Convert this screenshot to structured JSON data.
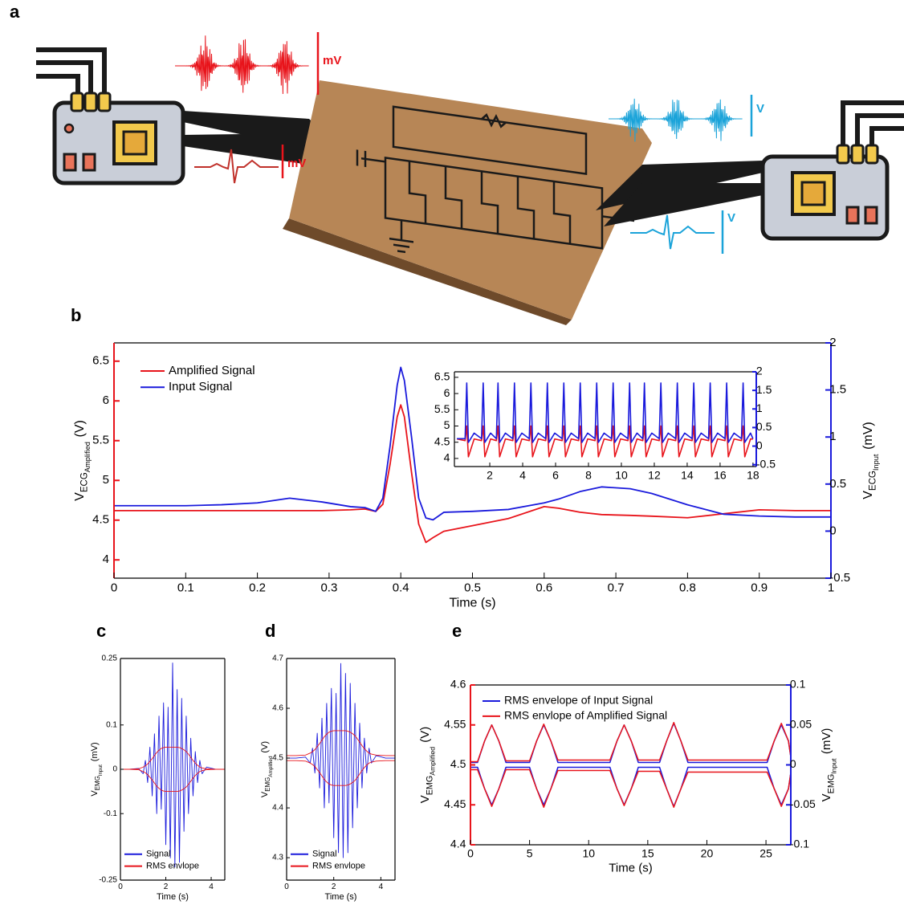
{
  "illustration": {
    "panel_label": "a",
    "scale_labels": [
      "mV",
      "mV",
      "V",
      "V"
    ]
  },
  "chart_data": [
    {
      "type": "line",
      "panel_label": "b",
      "x": [
        0,
        0.1,
        0.15,
        0.2,
        0.245,
        0.29,
        0.33,
        0.35,
        0.365,
        0.375,
        0.385,
        0.395,
        0.4,
        0.405,
        0.415,
        0.425,
        0.435,
        0.445,
        0.46,
        0.5,
        0.55,
        0.6,
        0.62,
        0.65,
        0.68,
        0.72,
        0.75,
        0.8,
        0.85,
        0.9,
        0.95,
        1
      ],
      "xlim": [
        0,
        1
      ],
      "xticks": [
        0,
        0.1,
        0.2,
        0.3,
        0.4,
        0.5,
        0.6,
        0.7,
        0.8,
        0.9,
        1
      ],
      "xlabel": "Time (s)",
      "ylim": [
        3.77,
        6.73
      ],
      "yticks": [
        4,
        4.5,
        5,
        5.5,
        6,
        6.5
      ],
      "y2lim": [
        -0.5,
        2
      ],
      "y2ticks": [
        -0.5,
        0,
        0.5,
        1,
        1.5,
        2
      ],
      "ylabel": {
        "main": "V",
        "sub": "ECG",
        "subsub": "Amplified",
        "unit": "(V)"
      },
      "y2label": {
        "main": "V",
        "sub": "ECG",
        "subsub": "Input",
        "unit": "(mV)"
      },
      "axis_colors": {
        "y": "#e8141b",
        "y2": "#1a1adc"
      },
      "legend": "upper left",
      "series": [
        {
          "name": "Amplified Signal",
          "color": "#e8141b",
          "values": [
            4.62,
            4.62,
            4.62,
            4.62,
            4.62,
            4.62,
            4.63,
            4.64,
            4.61,
            4.7,
            5.2,
            5.8,
            5.95,
            5.8,
            5.1,
            4.45,
            4.22,
            4.28,
            4.36,
            4.43,
            4.52,
            4.67,
            4.65,
            4.6,
            4.57,
            4.56,
            4.55,
            4.53,
            4.58,
            4.63,
            4.62,
            4.62
          ]
        },
        {
          "name": "Input Signal",
          "color": "#1a1adc",
          "axis": "y2",
          "values": [
            0.27,
            0.27,
            0.28,
            0.3,
            0.35,
            0.31,
            0.26,
            0.25,
            0.21,
            0.35,
            0.9,
            1.55,
            1.74,
            1.6,
            1.0,
            0.35,
            0.14,
            0.12,
            0.2,
            0.21,
            0.23,
            0.3,
            0.34,
            0.42,
            0.47,
            0.45,
            0.4,
            0.28,
            0.18,
            0.16,
            0.15,
            0.15
          ]
        }
      ]
    },
    {
      "type": "line",
      "x": [
        0,
        0.5,
        0.6,
        0.7,
        1.05,
        1.5,
        1.6,
        1.7,
        2.05,
        2.4,
        2.5,
        2.6,
        2.95,
        3.4,
        3.5,
        3.6,
        3.95,
        4.4,
        4.5,
        4.6,
        4.95,
        5.4,
        5.5,
        5.6,
        5.95,
        6.4,
        6.5,
        6.6,
        6.95,
        7.4,
        7.5,
        7.6,
        7.95,
        8.4,
        8.5,
        8.6,
        8.95,
        9.4,
        9.5,
        9.6,
        9.95,
        10.4,
        10.5,
        10.6,
        10.95,
        11.3,
        11.4,
        11.5,
        11.85,
        12.3,
        12.4,
        12.5,
        12.85,
        13.3,
        13.4,
        13.5,
        13.85,
        14.3,
        14.4,
        14.5,
        14.85,
        15.3,
        15.4,
        15.5,
        15.85,
        16.3,
        16.4,
        16.5,
        16.85,
        17.3,
        17.4,
        17.5,
        17.85,
        18
      ],
      "xlim": [
        -0.15,
        18.2
      ],
      "xticks": [
        2,
        4,
        6,
        8,
        10,
        12,
        14,
        16,
        18
      ],
      "ylim": [
        3.75,
        6.67
      ],
      "yticks": [
        4,
        4.5,
        5,
        5.5,
        6,
        6.5
      ],
      "y2lim": [
        -0.55,
        2.0
      ],
      "y2ticks": [
        -0.5,
        0,
        0.5,
        1,
        1.5,
        2
      ],
      "axis_colors": {
        "y2": "#1a1adc"
      },
      "series": [
        {
          "color": "#e8141b",
          "values": [
            4.6,
            4.55,
            5.0,
            4.05,
            4.6,
            4.55,
            5.0,
            4.05,
            4.6,
            4.55,
            5.0,
            4.05,
            4.6,
            4.55,
            5.0,
            4.05,
            4.6,
            4.55,
            5.0,
            4.05,
            4.6,
            4.55,
            5.0,
            4.05,
            4.6,
            4.55,
            5.0,
            4.05,
            4.6,
            4.55,
            5.0,
            4.05,
            4.6,
            4.55,
            5.0,
            4.05,
            4.6,
            4.55,
            5.0,
            4.05,
            4.6,
            4.55,
            5.0,
            4.05,
            4.6,
            4.55,
            5.0,
            4.05,
            4.6,
            4.55,
            5.0,
            4.05,
            4.6,
            4.55,
            5.0,
            4.05,
            4.6,
            4.55,
            5.0,
            4.05,
            4.6,
            4.55,
            5.0,
            4.05,
            4.6,
            4.55,
            5.0,
            4.05,
            4.6,
            4.55,
            5.0,
            4.05,
            4.6,
            4.6
          ]
        },
        {
          "color": "#1a1adc",
          "axis": "y2",
          "values": [
            0.2,
            0.2,
            1.7,
            0.1,
            0.35,
            0.2,
            1.7,
            0.1,
            0.35,
            0.2,
            1.7,
            0.1,
            0.35,
            0.2,
            1.7,
            0.1,
            0.35,
            0.2,
            1.7,
            0.1,
            0.35,
            0.2,
            1.7,
            0.1,
            0.35,
            0.2,
            1.7,
            0.1,
            0.35,
            0.2,
            1.7,
            0.1,
            0.35,
            0.2,
            1.7,
            0.1,
            0.35,
            0.2,
            1.7,
            0.1,
            0.35,
            0.2,
            1.7,
            0.1,
            0.35,
            0.2,
            1.7,
            0.1,
            0.35,
            0.2,
            1.7,
            0.1,
            0.35,
            0.2,
            1.7,
            0.1,
            0.35,
            0.2,
            1.7,
            0.1,
            0.35,
            0.2,
            1.7,
            0.1,
            0.35,
            0.2,
            1.7,
            0.1,
            0.35,
            0.2,
            1.7,
            0.1,
            0.35,
            0.2
          ]
        }
      ]
    },
    {
      "type": "line",
      "panel_label": "c",
      "x": [
        0,
        0.4,
        0.8,
        1.0,
        1.1,
        1.2,
        1.3,
        1.4,
        1.5,
        1.6,
        1.7,
        1.8,
        1.9,
        2.0,
        2.1,
        2.2,
        2.3,
        2.4,
        2.5,
        2.6,
        2.7,
        2.8,
        2.9,
        3.0,
        3.1,
        3.2,
        3.3,
        3.4,
        3.5,
        3.6,
        3.8,
        4.2,
        4.6
      ],
      "xlim": [
        0,
        4.6
      ],
      "xticks": [
        0,
        2,
        4
      ],
      "xlabel": "Time (s)",
      "ylim": [
        -0.25,
        0.25
      ],
      "yticks": [
        -0.25,
        -0.1,
        0,
        0.1,
        0.25
      ],
      "ylabel": {
        "main": "V",
        "sub": "EMG",
        "subsub": "Input",
        "unit": "(mV)"
      },
      "legend": "lower left",
      "series": [
        {
          "name": "Signal",
          "color": "#1a1adc",
          "values": [
            0,
            0,
            0.002,
            -0.01,
            0.02,
            -0.03,
            0.05,
            -0.06,
            0.08,
            -0.1,
            0.12,
            -0.09,
            0.15,
            -0.17,
            0.14,
            -0.2,
            0.24,
            -0.22,
            0.18,
            -0.21,
            0.16,
            -0.14,
            0.12,
            -0.1,
            0.07,
            -0.06,
            0.04,
            -0.03,
            0.02,
            -0.01,
            0.005,
            0,
            0
          ]
        },
        {
          "name": "RMS envlope",
          "color": "#e8141b",
          "values": [
            0,
            0,
            0.001,
            0.005,
            0.008,
            0.012,
            0.018,
            0.024,
            0.031,
            0.038,
            0.043,
            0.047,
            0.049,
            0.05,
            0.05,
            0.05,
            0.05,
            0.05,
            0.05,
            0.049,
            0.047,
            0.044,
            0.04,
            0.034,
            0.027,
            0.02,
            0.014,
            0.009,
            0.005,
            0.003,
            0.001,
            0,
            0
          ],
          "lower_values": [
            0,
            0,
            -0.001,
            -0.005,
            -0.008,
            -0.012,
            -0.018,
            -0.024,
            -0.031,
            -0.038,
            -0.043,
            -0.047,
            -0.049,
            -0.05,
            -0.05,
            -0.05,
            -0.05,
            -0.05,
            -0.05,
            -0.049,
            -0.047,
            -0.044,
            -0.04,
            -0.034,
            -0.027,
            -0.02,
            -0.014,
            -0.009,
            -0.005,
            -0.003,
            -0.001,
            0,
            0
          ]
        }
      ]
    },
    {
      "type": "line",
      "panel_label": "d",
      "x": [
        0,
        0.4,
        0.8,
        1.0,
        1.1,
        1.2,
        1.3,
        1.4,
        1.5,
        1.6,
        1.7,
        1.8,
        1.9,
        2.0,
        2.1,
        2.2,
        2.3,
        2.4,
        2.5,
        2.6,
        2.7,
        2.8,
        2.9,
        3.0,
        3.1,
        3.2,
        3.3,
        3.4,
        3.5,
        3.6,
        3.8,
        4.2,
        4.6
      ],
      "xlim": [
        0,
        4.6
      ],
      "xticks": [
        0,
        2,
        4
      ],
      "xlabel": "Time (s)",
      "ylim": [
        4.255,
        4.7
      ],
      "yticks": [
        4.3,
        4.4,
        4.5,
        4.6,
        4.7
      ],
      "ylabel": {
        "main": "V",
        "sub": "EMG",
        "subsub": "Amplified",
        "unit": "(V)"
      },
      "legend": "lower left",
      "series": [
        {
          "name": "Signal",
          "color": "#1a1adc",
          "values": [
            4.5,
            4.5,
            4.502,
            4.49,
            4.52,
            4.47,
            4.55,
            4.44,
            4.58,
            4.4,
            4.61,
            4.41,
            4.64,
            4.34,
            4.63,
            4.31,
            4.69,
            4.3,
            4.67,
            4.31,
            4.65,
            4.36,
            4.61,
            4.4,
            4.57,
            4.44,
            4.54,
            4.47,
            4.52,
            4.49,
            4.505,
            4.5,
            4.5
          ]
        },
        {
          "name": "RMS envlope",
          "color": "#e8141b",
          "values": [
            4.505,
            4.505,
            4.506,
            4.51,
            4.513,
            4.517,
            4.523,
            4.529,
            4.536,
            4.543,
            4.548,
            4.552,
            4.554,
            4.555,
            4.555,
            4.555,
            4.555,
            4.555,
            4.555,
            4.554,
            4.552,
            4.549,
            4.545,
            4.539,
            4.532,
            4.525,
            4.519,
            4.514,
            4.51,
            4.508,
            4.506,
            4.505,
            4.505
          ],
          "lower_values": [
            4.495,
            4.495,
            4.494,
            4.49,
            4.487,
            4.483,
            4.477,
            4.471,
            4.464,
            4.457,
            4.452,
            4.448,
            4.446,
            4.445,
            4.445,
            4.445,
            4.445,
            4.445,
            4.445,
            4.446,
            4.448,
            4.451,
            4.455,
            4.461,
            4.468,
            4.475,
            4.481,
            4.486,
            4.49,
            4.492,
            4.494,
            4.495,
            4.495
          ]
        }
      ]
    },
    {
      "type": "line",
      "panel_label": "e",
      "x": [
        0,
        0.6,
        1.2,
        1.8,
        2.4,
        3.0,
        5.0,
        5.6,
        6.2,
        6.8,
        7.4,
        11.8,
        12.4,
        13.0,
        13.6,
        14.2,
        16.0,
        16.6,
        17.2,
        17.8,
        18.4,
        25.1,
        25.7,
        26.3,
        26.9,
        27.1
      ],
      "xlim": [
        0,
        27.1
      ],
      "xticks": [
        0,
        5,
        10,
        15,
        20,
        25
      ],
      "xlabel": "Time (s)",
      "ylim": [
        4.4,
        4.6
      ],
      "yticks": [
        4.4,
        4.45,
        4.5,
        4.55,
        4.6
      ],
      "y2lim": [
        -0.1,
        0.1
      ],
      "y2ticks": [
        -0.1,
        -0.05,
        0,
        0.05,
        0.1
      ],
      "ylabel": {
        "main": "V",
        "sub": "EMG",
        "subsub": "Amplified",
        "unit": "(V)"
      },
      "y2label": {
        "main": "V",
        "sub": "EMG",
        "subsub": "Input",
        "unit": "(mV)"
      },
      "axis_colors": {
        "y": "#e8141b",
        "y2": "#1a1adc"
      },
      "legend": "upper left",
      "series": [
        {
          "name": "RMS envelope of Input Signal",
          "color": "#1a1adc",
          "axis": "y2",
          "values": [
            0.003,
            0.003,
            0.03,
            0.05,
            0.03,
            0.003,
            0.003,
            0.03,
            0.05,
            0.03,
            0.003,
            0.003,
            0.03,
            0.05,
            0.03,
            0.003,
            0.003,
            0.03,
            0.052,
            0.03,
            0.003,
            0.003,
            0.03,
            0.05,
            0.03,
            0.01
          ],
          "lower_values": [
            -0.003,
            -0.003,
            -0.03,
            -0.05,
            -0.03,
            -0.003,
            -0.003,
            -0.03,
            -0.05,
            -0.03,
            -0.003,
            -0.003,
            -0.03,
            -0.05,
            -0.03,
            -0.003,
            -0.003,
            -0.03,
            -0.052,
            -0.03,
            -0.003,
            -0.003,
            -0.03,
            -0.05,
            -0.03,
            -0.01
          ]
        },
        {
          "name": "RMS envlope of Amplified Signal",
          "color": "#e8141b",
          "values": [
            4.504,
            4.504,
            4.53,
            4.55,
            4.53,
            4.505,
            4.505,
            4.53,
            4.551,
            4.53,
            4.506,
            4.506,
            4.53,
            4.55,
            4.53,
            4.506,
            4.506,
            4.53,
            4.553,
            4.53,
            4.506,
            4.506,
            4.53,
            4.552,
            4.53,
            4.51
          ],
          "lower_values": [
            4.494,
            4.494,
            4.47,
            4.448,
            4.47,
            4.494,
            4.494,
            4.47,
            4.447,
            4.47,
            4.493,
            4.493,
            4.47,
            4.449,
            4.47,
            4.492,
            4.492,
            4.47,
            4.447,
            4.47,
            4.491,
            4.491,
            4.47,
            4.448,
            4.47,
            4.49
          ]
        }
      ]
    }
  ]
}
